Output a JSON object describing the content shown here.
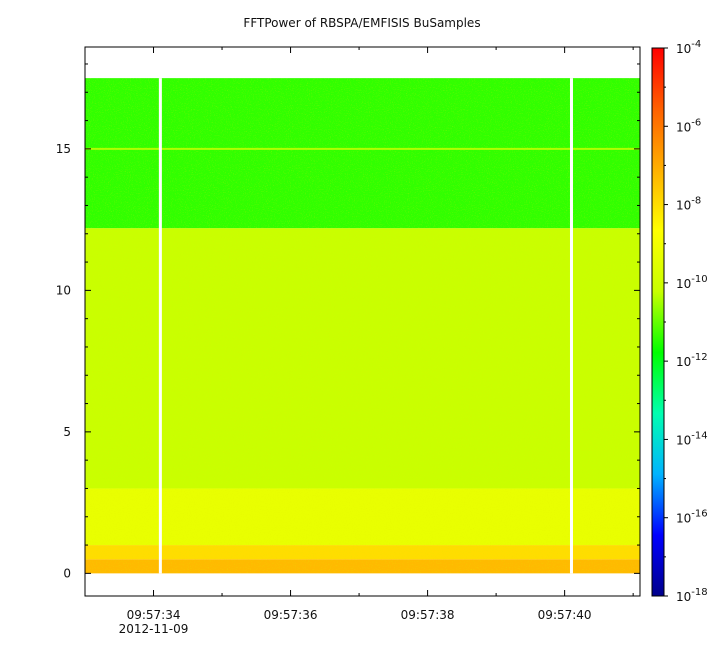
{
  "chart_data": {
    "type": "heatmap",
    "title": "FFTPower of RBSPA/EMFISIS  BuSamples",
    "xlabel": "",
    "ylabel": "",
    "x_tick_labels": [
      "09:57:34",
      "09:57:36",
      "09:57:38",
      "09:57:40"
    ],
    "x_date_label": "2012-11-09",
    "x_range_seconds": [
      "09:57:33.0",
      "09:57:41.1"
    ],
    "y_ticks": [
      0,
      5,
      10,
      15
    ],
    "ylim": [
      -0.8,
      18.6
    ],
    "data_ylim": [
      0,
      17.5
    ],
    "colorbar": {
      "scale": "log",
      "range": [
        1e-18,
        0.0001
      ],
      "tick_labels": [
        "10-4",
        "10-6",
        "10-8",
        "10-10",
        "10-12",
        "10-14",
        "10-16",
        "10-18"
      ],
      "tick_values": [
        -4,
        -6,
        -8,
        -10,
        -12,
        -14,
        -16,
        -18
      ],
      "colors": [
        "#00008b",
        "#0000ff",
        "#00b3ff",
        "#00ffb0",
        "#00ff00",
        "#c8ff00",
        "#ffff00",
        "#ffb000",
        "#ff6000",
        "#ff0000"
      ]
    },
    "bands": [
      {
        "y_from": 0.0,
        "y_to": 0.5,
        "level": -7.3
      },
      {
        "y_from": 0.5,
        "y_to": 1.0,
        "level": -8.0
      },
      {
        "y_from": 1.0,
        "y_to": 3.0,
        "level": -9.3
      },
      {
        "y_from": 3.0,
        "y_to": 12.2,
        "level": -10.2
      },
      {
        "y_from": 12.2,
        "y_to": 17.5,
        "level": -11.4
      }
    ],
    "line_feature": {
      "y": 15.0,
      "level": -10.4
    },
    "data_gaps": [
      "09:57:34.1",
      "09:57:40.1"
    ]
  }
}
